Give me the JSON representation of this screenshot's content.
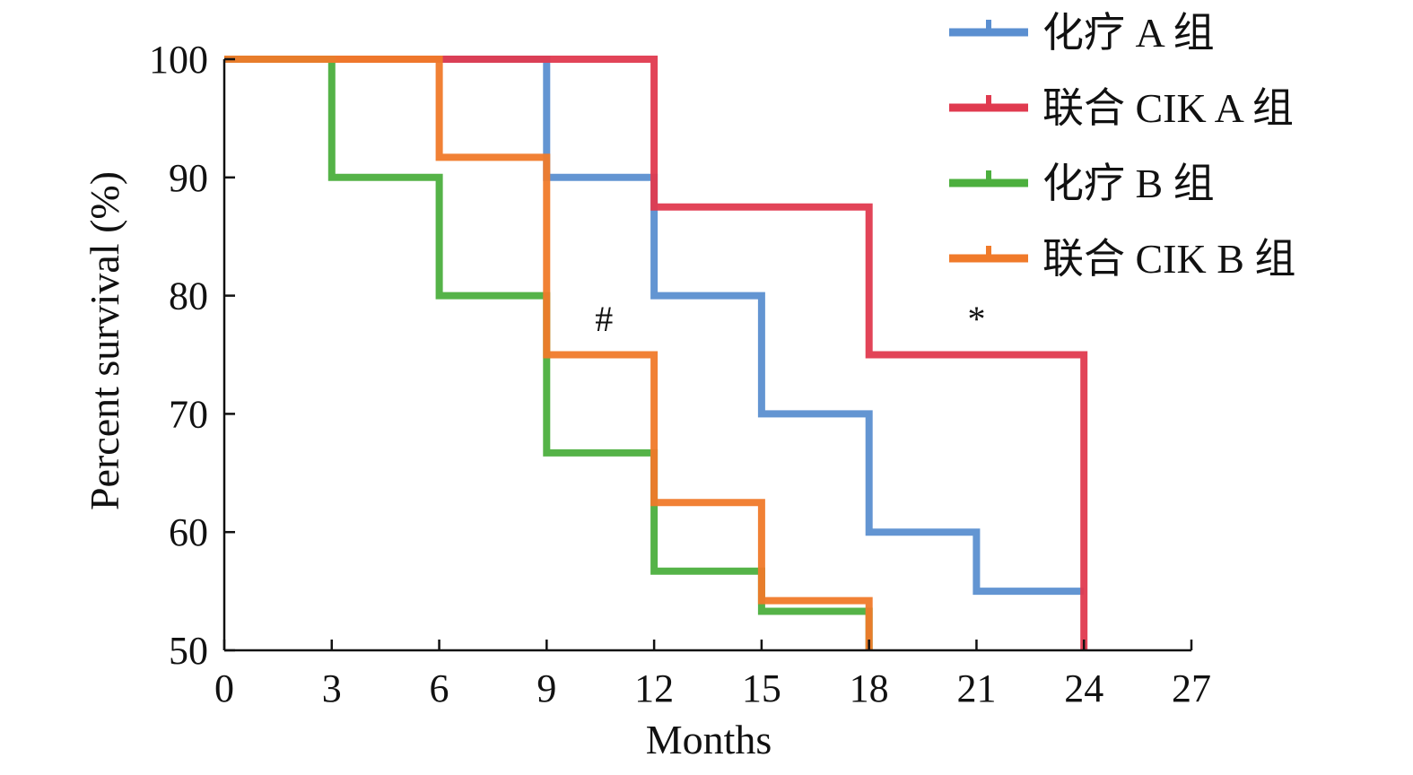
{
  "chart_data": {
    "type": "line",
    "step": true,
    "title": "",
    "xlabel": "Months",
    "ylabel": "Percent survival (%)",
    "xlim": [
      0,
      27
    ],
    "ylim": [
      50,
      100
    ],
    "x_ticks": [
      "0",
      "3",
      "6",
      "9",
      "12",
      "15",
      "18",
      "21",
      "24",
      "27"
    ],
    "y_ticks": [
      "50",
      "60",
      "70",
      "80",
      "90",
      "100"
    ],
    "grid": false,
    "legend_position": "top-right",
    "series": [
      {
        "name": "化疗 A 组",
        "color": "#5b8fd0",
        "points": [
          [
            0,
            100
          ],
          [
            9,
            100
          ],
          [
            9,
            90
          ],
          [
            12,
            90
          ],
          [
            12,
            80
          ],
          [
            15,
            80
          ],
          [
            15,
            70
          ],
          [
            18,
            70
          ],
          [
            18,
            60
          ],
          [
            21,
            60
          ],
          [
            21,
            55
          ],
          [
            24,
            55
          ]
        ]
      },
      {
        "name": "联合 CIK A 组",
        "color": "#e03a4f",
        "points": [
          [
            0,
            100
          ],
          [
            12,
            100
          ],
          [
            12,
            87.5
          ],
          [
            18,
            87.5
          ],
          [
            18,
            75
          ],
          [
            24,
            75
          ],
          [
            24,
            50
          ]
        ]
      },
      {
        "name": "化疗 B 组",
        "color": "#4caf3e",
        "points": [
          [
            0,
            100
          ],
          [
            3,
            100
          ],
          [
            3,
            90
          ],
          [
            6,
            90
          ],
          [
            6,
            80
          ],
          [
            9,
            80
          ],
          [
            9,
            66.7
          ],
          [
            12,
            66.7
          ],
          [
            12,
            56.7
          ],
          [
            15,
            56.7
          ],
          [
            15,
            53.3
          ],
          [
            18,
            53.3
          ],
          [
            18,
            50
          ]
        ]
      },
      {
        "name": "联合 CIK B 组",
        "color": "#f07a2a",
        "points": [
          [
            0,
            100
          ],
          [
            6,
            100
          ],
          [
            6,
            91.7
          ],
          [
            9,
            91.7
          ],
          [
            9,
            75
          ],
          [
            12,
            75
          ],
          [
            12,
            62.5
          ],
          [
            15,
            62.5
          ],
          [
            15,
            54.2
          ],
          [
            18,
            54.2
          ],
          [
            18,
            50
          ]
        ]
      }
    ],
    "annotations": [
      {
        "text": "#",
        "x": 10.6,
        "y": 77
      },
      {
        "text": "*",
        "x": 21,
        "y": 77
      }
    ]
  }
}
